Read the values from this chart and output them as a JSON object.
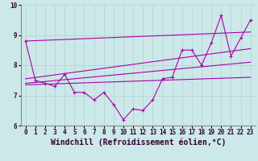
{
  "xlabel": "Windchill (Refroidissement éolien,°C)",
  "bg_color": "#cce8e8",
  "line_color": "#aa00aa",
  "xlim": [
    -0.5,
    23.5
  ],
  "ylim": [
    6,
    10
  ],
  "yticks": [
    6,
    7,
    8,
    9,
    10
  ],
  "xticks": [
    0,
    1,
    2,
    3,
    4,
    5,
    6,
    7,
    8,
    9,
    10,
    11,
    12,
    13,
    14,
    15,
    16,
    17,
    18,
    19,
    20,
    21,
    22,
    23
  ],
  "series_main": [
    [
      0,
      8.8
    ],
    [
      1,
      7.5
    ],
    [
      2,
      7.4
    ],
    [
      3,
      7.3
    ],
    [
      4,
      7.7
    ],
    [
      5,
      7.1
    ],
    [
      6,
      7.1
    ],
    [
      7,
      6.85
    ],
    [
      8,
      7.1
    ],
    [
      9,
      6.7
    ],
    [
      10,
      6.2
    ],
    [
      11,
      6.55
    ],
    [
      12,
      6.5
    ],
    [
      13,
      6.85
    ],
    [
      14,
      7.55
    ],
    [
      15,
      7.6
    ],
    [
      16,
      8.5
    ],
    [
      17,
      8.5
    ],
    [
      18,
      8.0
    ],
    [
      19,
      8.75
    ],
    [
      20,
      9.65
    ],
    [
      21,
      8.3
    ],
    [
      22,
      8.9
    ],
    [
      23,
      9.5
    ]
  ],
  "series_upper": [
    [
      0,
      8.8
    ],
    [
      23,
      9.1
    ]
  ],
  "series_mid_upper": [
    [
      0,
      7.55
    ],
    [
      23,
      8.55
    ]
  ],
  "series_mid_lower": [
    [
      0,
      7.4
    ],
    [
      23,
      8.1
    ]
  ],
  "series_lower": [
    [
      0,
      7.35
    ],
    [
      23,
      7.6
    ]
  ],
  "grid_color": "#aad4d4",
  "tick_fontsize": 5.5,
  "label_fontsize": 7
}
